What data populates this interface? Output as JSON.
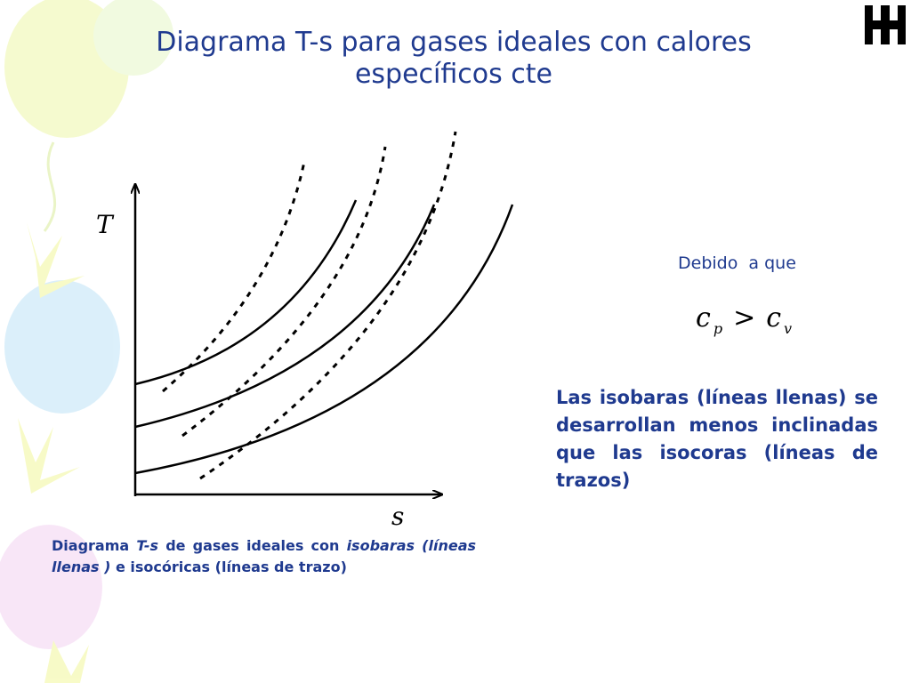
{
  "title": {
    "line1": "Diagrama T-s para gases ideales con calores",
    "line2": "específicos cte"
  },
  "diagram": {
    "y_axis_label": "T",
    "x_axis_label": "s",
    "isobars_style": "solid",
    "isochores_style": "dashed",
    "isobar_count": 3,
    "isochore_count": 3
  },
  "note": {
    "because": "Debido  a que",
    "formula": {
      "c1": "c",
      "sub1": "p",
      "operator": ">",
      "c2": "c",
      "sub2": "v"
    }
  },
  "explanation": "Las isobaras (líneas llenas) se desarrollan menos inclinadas que las isocoras (líneas de trazos)",
  "caption": {
    "part1": "Diagrama ",
    "part2_italic": "T-s",
    "part3": " de gases ideales con ",
    "part4_italic": "isobaras (líneas llenas )",
    "part5": " e isocóricas (líneas de trazo)"
  },
  "logo": {
    "name": "utn-logo-icon"
  },
  "colors": {
    "title": "#1f3a8f",
    "text": "#1f3a8f",
    "lines": "#000000",
    "balloon_yellow": "#eef7a8",
    "balloon_blue": "#bfe3f7",
    "balloon_pink": "#f3d3f2"
  }
}
